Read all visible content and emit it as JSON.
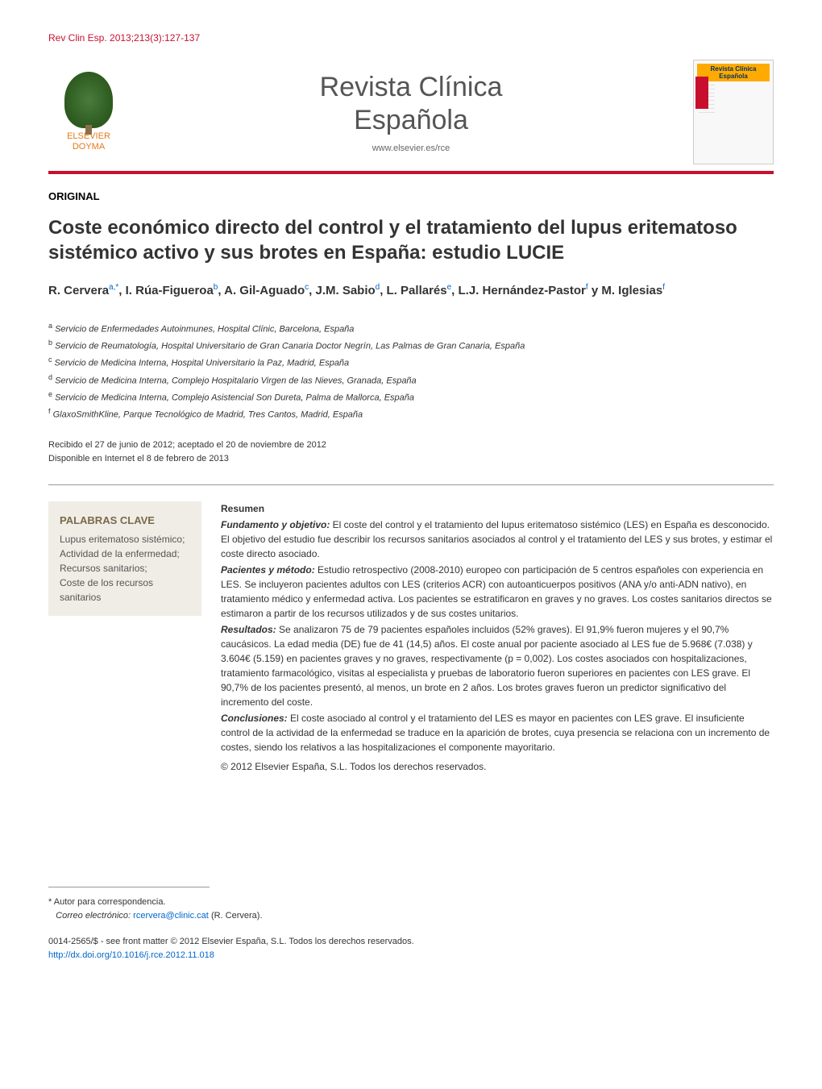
{
  "citation": "Rev Clin Esp. 2013;213(3):127-137",
  "publisher": {
    "name_line1": "ELSEVIER",
    "name_line2": "DOYMA"
  },
  "journal": {
    "title_line1": "Revista Clínica",
    "title_line2": "Española",
    "url": "www.elsevier.es/rce",
    "cover_title": "Revista Clínica Española"
  },
  "article_type": "ORIGINAL",
  "title": "Coste económico directo del control y el tratamiento del lupus eritematoso sistémico activo y sus brotes en España: estudio LUCIE",
  "authors_html": "R. Cervera<sup>a,*</sup>, I. Rúa-Figueroa<sup>b</sup>, A. Gil-Aguado<sup>c</sup>, J.M. Sabio<sup>d</sup>, L. Pallarés<sup>e</sup>, L.J. Hernández-Pastor<sup>f</sup> y M. Iglesias<sup>f</sup>",
  "affiliations": [
    {
      "sup": "a",
      "text": "Servicio de Enfermedades Autoinmunes, Hospital Clínic, Barcelona, España"
    },
    {
      "sup": "b",
      "text": "Servicio de Reumatología, Hospital Universitario de Gran Canaria Doctor Negrín, Las Palmas de Gran Canaria, España"
    },
    {
      "sup": "c",
      "text": "Servicio de Medicina Interna, Hospital Universitario la Paz, Madrid, España"
    },
    {
      "sup": "d",
      "text": "Servicio de Medicina Interna, Complejo Hospitalario Virgen de las Nieves, Granada, España"
    },
    {
      "sup": "e",
      "text": "Servicio de Medicina Interna, Complejo Asistencial Son Dureta, Palma de Mallorca, España"
    },
    {
      "sup": "f",
      "text": "GlaxoSmithKline, Parque Tecnológico de Madrid, Tres Cantos, Madrid, España"
    }
  ],
  "dates": {
    "received_accepted": "Recibido el 27 de junio de 2012; aceptado el 20 de noviembre de 2012",
    "online": "Disponible en Internet el 8 de febrero de 2013"
  },
  "keywords": {
    "title": "PALABRAS CLAVE",
    "items": "Lupus eritematoso sistémico;\nActividad de la enfermedad;\nRecursos sanitarios;\nCoste de los recursos sanitarios"
  },
  "abstract": {
    "title": "Resumen",
    "sections": [
      {
        "label": "Fundamento y objetivo:",
        "text": "El coste del control y el tratamiento del lupus eritematoso sistémico (LES) en España es desconocido. El objetivo del estudio fue describir los recursos sanitarios asociados al control y el tratamiento del LES y sus brotes, y estimar el coste directo asociado."
      },
      {
        "label": "Pacientes y método:",
        "text": "Estudio retrospectivo (2008-2010) europeo con participación de 5 centros españoles con experiencia en LES. Se incluyeron pacientes adultos con LES (criterios ACR) con autoanticuerpos positivos (ANA y/o anti-ADN nativo), en tratamiento médico y enfermedad activa. Los pacientes se estratificaron en graves y no graves. Los costes sanitarios directos se estimaron a partir de los recursos utilizados y de sus costes unitarios."
      },
      {
        "label": "Resultados:",
        "text": "Se analizaron 75 de 79 pacientes españoles incluidos (52% graves). El 91,9% fueron mujeres y el 90,7% caucásicos. La edad media (DE) fue de 41 (14,5) años. El coste anual por paciente asociado al LES fue de 5.968€ (7.038) y 3.604€ (5.159) en pacientes graves y no graves, respectivamente (p = 0,002). Los costes asociados con hospitalizaciones, tratamiento farmacológico, visitas al especialista y pruebas de laboratorio fueron superiores en pacientes con LES grave. El 90,7% de los pacientes presentó, al menos, un brote en 2 años. Los brotes graves fueron un predictor significativo del incremento del coste."
      },
      {
        "label": "Conclusiones:",
        "text": "El coste asociado al control y el tratamiento del LES es mayor en pacientes con LES grave. El insuficiente control de la actividad de la enfermedad se traduce en la aparición de brotes, cuya presencia se relaciona con un incremento de costes, siendo los relativos a las hospitalizaciones el componente mayoritario."
      }
    ],
    "copyright": "© 2012 Elsevier España, S.L. Todos los derechos reservados."
  },
  "corresponding": {
    "marker": "*",
    "label": "Autor para correspondencia.",
    "email_label": "Correo electrónico:",
    "email": "rcervera@clinic.cat",
    "author": "(R. Cervera)."
  },
  "front_matter": {
    "line1": "0014-2565/$ - see front matter © 2012 Elsevier España, S.L. Todos los derechos reservados.",
    "doi": "http://dx.doi.org/10.1016/j.rce.2012.11.018"
  },
  "colors": {
    "brand_red": "#c8102e",
    "publisher_orange": "#e67817",
    "link_blue": "#0066cc",
    "keywords_bg": "#f0ede6",
    "keywords_title": "#7a6a4a",
    "text_body": "#333333"
  }
}
